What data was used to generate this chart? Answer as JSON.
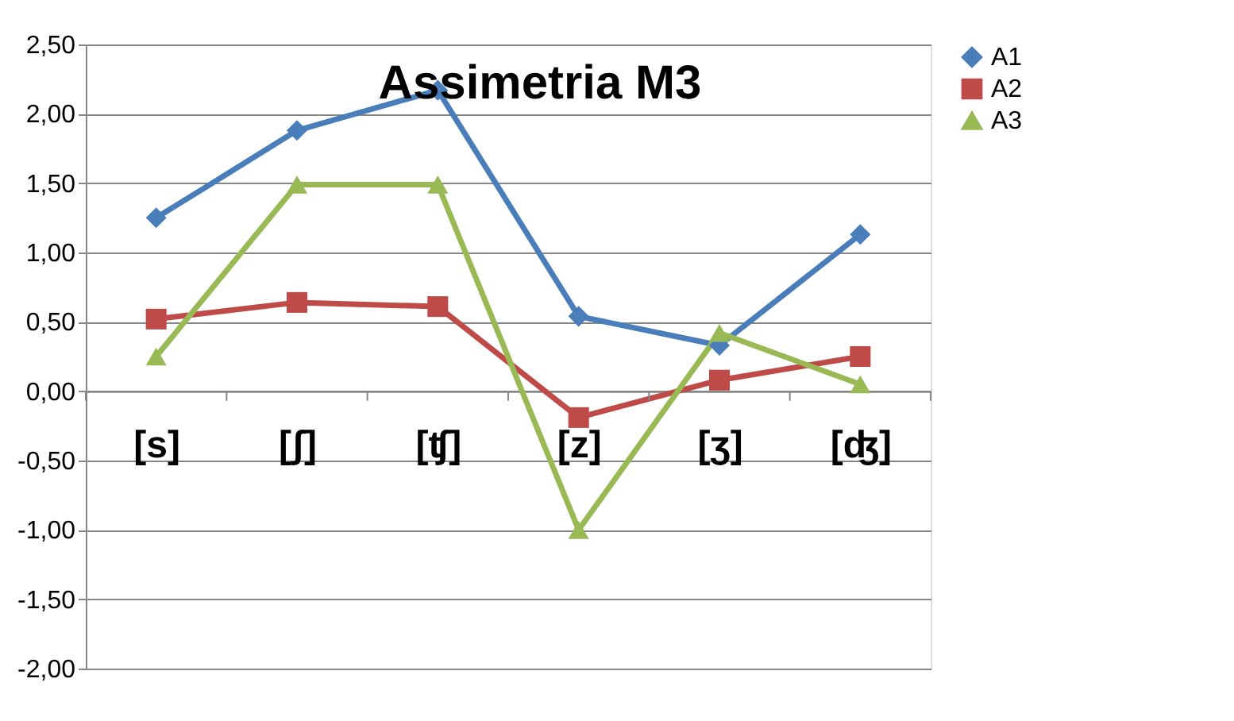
{
  "chart_data": {
    "type": "line",
    "title": "Assimetria M3",
    "categories": [
      "[s]",
      "[ʃ]",
      "[ʧ]",
      "[z]",
      "[ʒ]",
      "[ʤ]"
    ],
    "series": [
      {
        "name": "A1",
        "color": "#4a7ebb",
        "marker": "diamond",
        "values": [
          1.25,
          1.88,
          2.17,
          0.54,
          0.33,
          1.13
        ]
      },
      {
        "name": "A2",
        "color": "#be4b48",
        "marker": "square",
        "values": [
          0.52,
          0.64,
          0.61,
          -0.19,
          0.08,
          0.25
        ]
      },
      {
        "name": "A3",
        "color": "#98b954",
        "marker": "triangle",
        "values": [
          0.25,
          1.49,
          1.49,
          -1.0,
          0.42,
          0.05
        ]
      }
    ],
    "ylim": [
      -2.0,
      2.5
    ],
    "yticks": [
      {
        "value": -2.0,
        "label": "-2,00"
      },
      {
        "value": -1.5,
        "label": "-1,50"
      },
      {
        "value": -1.0,
        "label": "-1,00"
      },
      {
        "value": -0.5,
        "label": "-0,50"
      },
      {
        "value": 0.0,
        "label": "0,00"
      },
      {
        "value": 0.5,
        "label": "0,50"
      },
      {
        "value": 1.0,
        "label": "1,00"
      },
      {
        "value": 1.5,
        "label": "1,50"
      },
      {
        "value": 2.0,
        "label": "2,00"
      },
      {
        "value": 2.5,
        "label": "2,50"
      }
    ],
    "grid": "y",
    "legend": "right",
    "line_style": "solid"
  }
}
